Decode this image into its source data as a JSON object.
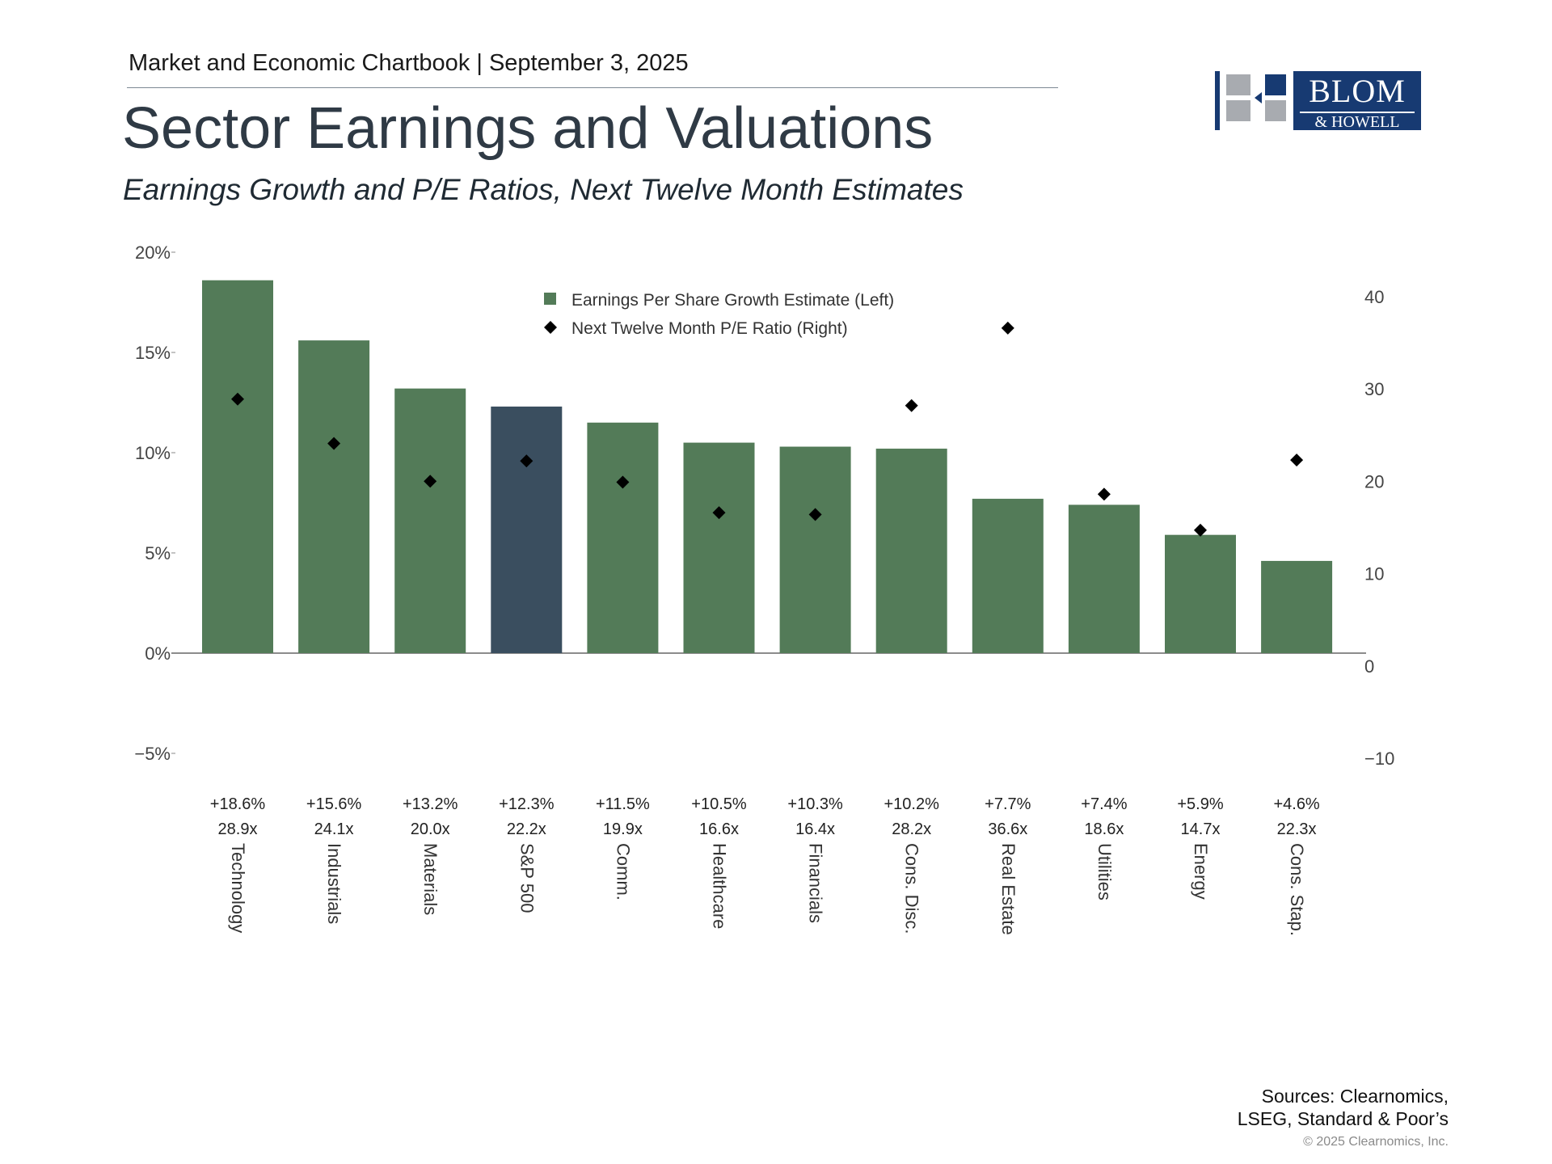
{
  "header": {
    "chartbook": "Market and Economic Chartbook | September 3, 2025",
    "title": "Sector Earnings and Valuations",
    "subtitle": "Earnings Growth and P/E Ratios, Next Twelve Month Estimates"
  },
  "logo": {
    "line1": "BLOM",
    "line2": "& HOWELL"
  },
  "footer": {
    "sources_line1": "Sources: Clearnomics,",
    "sources_line2": "LSEG, Standard & Poor’s",
    "copyright": "© 2025 Clearnomics, Inc."
  },
  "colors": {
    "bar": "#537b58",
    "highlight_bar": "#3a4e5f",
    "marker": "#000000",
    "axis": "#555555",
    "logo_blue": "#173a72"
  },
  "chart_data": {
    "type": "bar",
    "categories": [
      "Technology",
      "Industrials",
      "Materials",
      "S&P 500",
      "Comm.",
      "Healthcare",
      "Financials",
      "Cons. Disc.",
      "Real Estate",
      "Utilities",
      "Energy",
      "Cons. Stap."
    ],
    "highlight_category": "S&P 500",
    "series": [
      {
        "name": "Earnings Per Share Growth Estimate (Left)",
        "axis": "left",
        "kind": "bar",
        "values": [
          18.6,
          15.6,
          13.2,
          12.3,
          11.5,
          10.5,
          10.3,
          10.2,
          7.7,
          7.4,
          5.9,
          4.6
        ]
      },
      {
        "name": "Next Twelve Month P/E Ratio (Right)",
        "axis": "right",
        "kind": "scatter",
        "marker": "diamond",
        "values": [
          28.9,
          24.1,
          20.0,
          22.2,
          19.9,
          16.6,
          16.4,
          28.2,
          36.6,
          18.6,
          14.7,
          22.3
        ]
      }
    ],
    "value_labels": [
      "+18.6%",
      "+15.6%",
      "+13.2%",
      "+12.3%",
      "+11.5%",
      "+10.5%",
      "+10.3%",
      "+10.2%",
      "+7.7%",
      "+7.4%",
      "+5.9%",
      "+4.6%"
    ],
    "pe_labels": [
      "28.9x",
      "24.1x",
      "20.0x",
      "22.2x",
      "19.9x",
      "16.6x",
      "16.4x",
      "28.2x",
      "36.6x",
      "18.6x",
      "14.7x",
      "22.3x"
    ],
    "y_left": {
      "ticks": [
        "20%",
        "15%",
        "10%",
        "5%",
        "0%",
        "−5%"
      ],
      "tick_values": [
        20,
        15,
        10,
        5,
        0,
        -5
      ],
      "ylim": [
        -5,
        20
      ]
    },
    "y_right": {
      "ticks": [
        "40",
        "30",
        "20",
        "10",
        "0",
        "−10"
      ],
      "tick_values": [
        40,
        30,
        20,
        10,
        0,
        -10
      ],
      "ylim": [
        -10,
        40
      ]
    },
    "legend_position": "top-center",
    "grid": false
  }
}
